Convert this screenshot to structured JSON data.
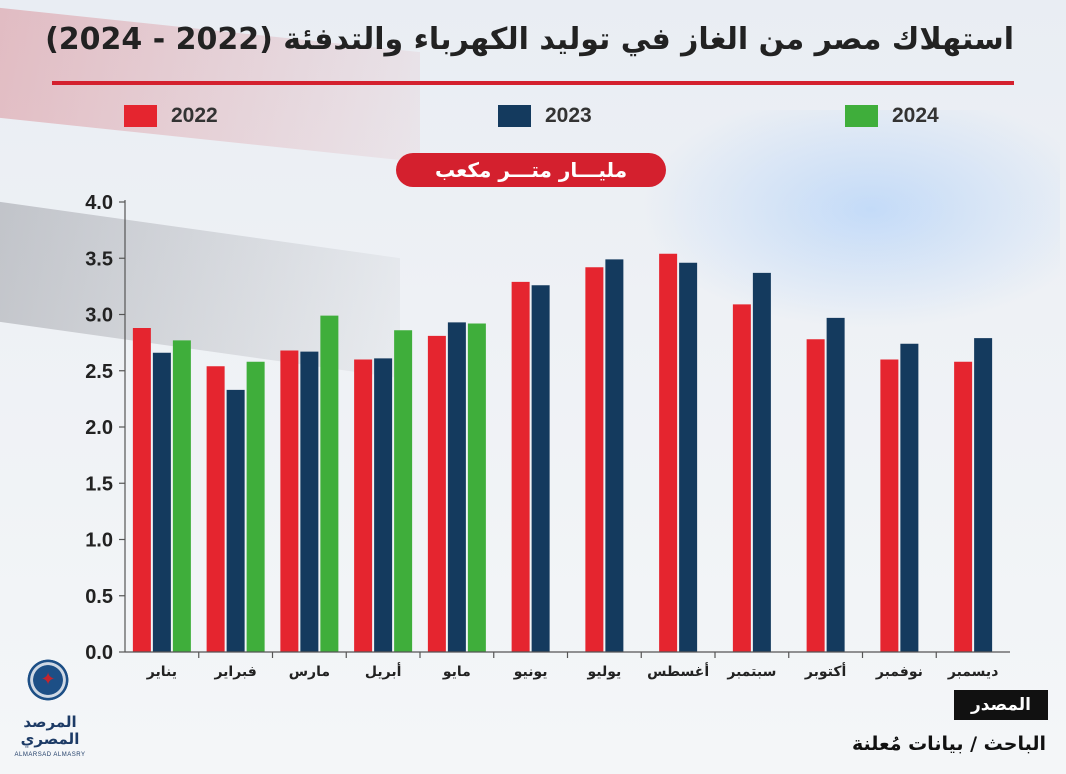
{
  "title": "استهلاك مصر من الغاز في توليد الكهرباء والتدفئة (2022 - 2024)",
  "unit_label": "مليـــار متـــر مكعب",
  "source": {
    "heading": "المصدر",
    "text": "الباحث / بيانات مُعلنة"
  },
  "logo": {
    "name_line1": "المرصد",
    "name_line2": "المصري",
    "subtitle": "ALMARSAD ALMASRY"
  },
  "colors": {
    "accent": "#d4202e",
    "series_2022": "#e5252f",
    "series_2023": "#143a5e",
    "series_2024": "#3fae3b"
  },
  "chart_data": {
    "type": "bar",
    "title": "استهلاك مصر من الغاز في توليد الكهرباء والتدفئة (2022 - 2024)",
    "ylabel": "مليـــار متـــر مكعب",
    "xlabel": "",
    "ylim": [
      0,
      4
    ],
    "yticks": [
      "0.0",
      "0.5",
      "1.0",
      "1.5",
      "2.0",
      "2.5",
      "3.0",
      "3.5",
      "4.0"
    ],
    "grid": false,
    "legend_position": "top",
    "categories": [
      "يناير",
      "فبراير",
      "مارس",
      "أبريل",
      "مايو",
      "يونيو",
      "يوليو",
      "أغسطس",
      "سبتمبر",
      "أكتوبر",
      "نوفمبر",
      "ديسمبر"
    ],
    "series": [
      {
        "name": "2022",
        "color": "#e5252f",
        "values": [
          2.88,
          2.54,
          2.68,
          2.6,
          2.81,
          3.29,
          3.42,
          3.54,
          3.09,
          2.78,
          2.6,
          2.58
        ]
      },
      {
        "name": "2023",
        "color": "#143a5e",
        "values": [
          2.66,
          2.33,
          2.67,
          2.61,
          2.93,
          3.26,
          3.49,
          3.46,
          3.37,
          2.97,
          2.74,
          2.79
        ]
      },
      {
        "name": "2024",
        "color": "#3fae3b",
        "values": [
          2.77,
          2.58,
          2.99,
          2.86,
          2.92,
          null,
          null,
          null,
          null,
          null,
          null,
          null
        ]
      }
    ]
  }
}
